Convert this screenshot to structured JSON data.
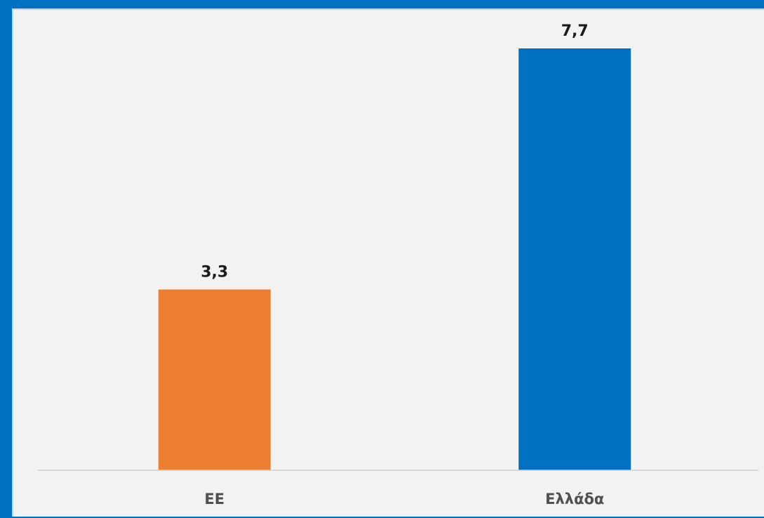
{
  "chart_data": {
    "type": "bar",
    "categories": [
      "ΕΕ",
      "Ελλάδα"
    ],
    "values": [
      3.3,
      7.7
    ],
    "value_labels": [
      "3,3",
      "7,7"
    ],
    "bar_colors": [
      "#ed7d31",
      "#0070c0"
    ],
    "title": "",
    "xlabel": "",
    "ylabel": "",
    "ylim": [
      0,
      7.7
    ],
    "grid": false,
    "legend": "none"
  },
  "colors": {
    "background_frame": "#0070c0",
    "plot_background": "#f2f2f2",
    "axis_line": "#d0d0d0"
  }
}
